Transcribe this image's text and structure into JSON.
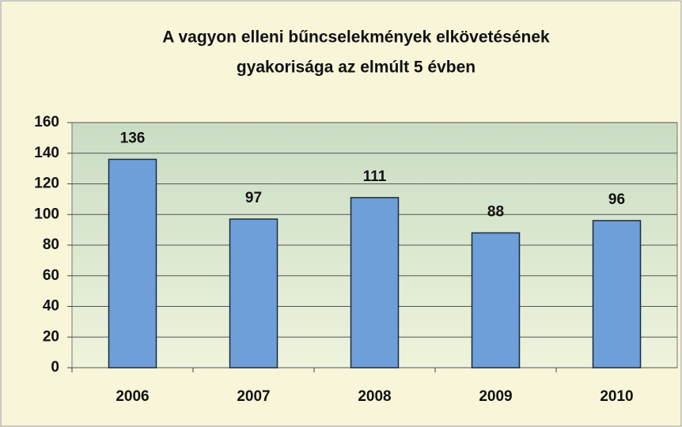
{
  "chart_data": {
    "type": "bar",
    "title": [
      "A vagyon elleni bűncselekmények elkövetésének",
      "gyakorisága az elmúlt 5 évben"
    ],
    "categories": [
      "2006",
      "2007",
      "2008",
      "2009",
      "2010"
    ],
    "values": [
      136,
      97,
      111,
      88,
      96
    ],
    "color": "#6f9fd8",
    "ylim": [
      0,
      160
    ],
    "yticks": [
      0,
      20,
      40,
      60,
      80,
      100,
      120,
      140,
      160
    ],
    "grid": true
  }
}
